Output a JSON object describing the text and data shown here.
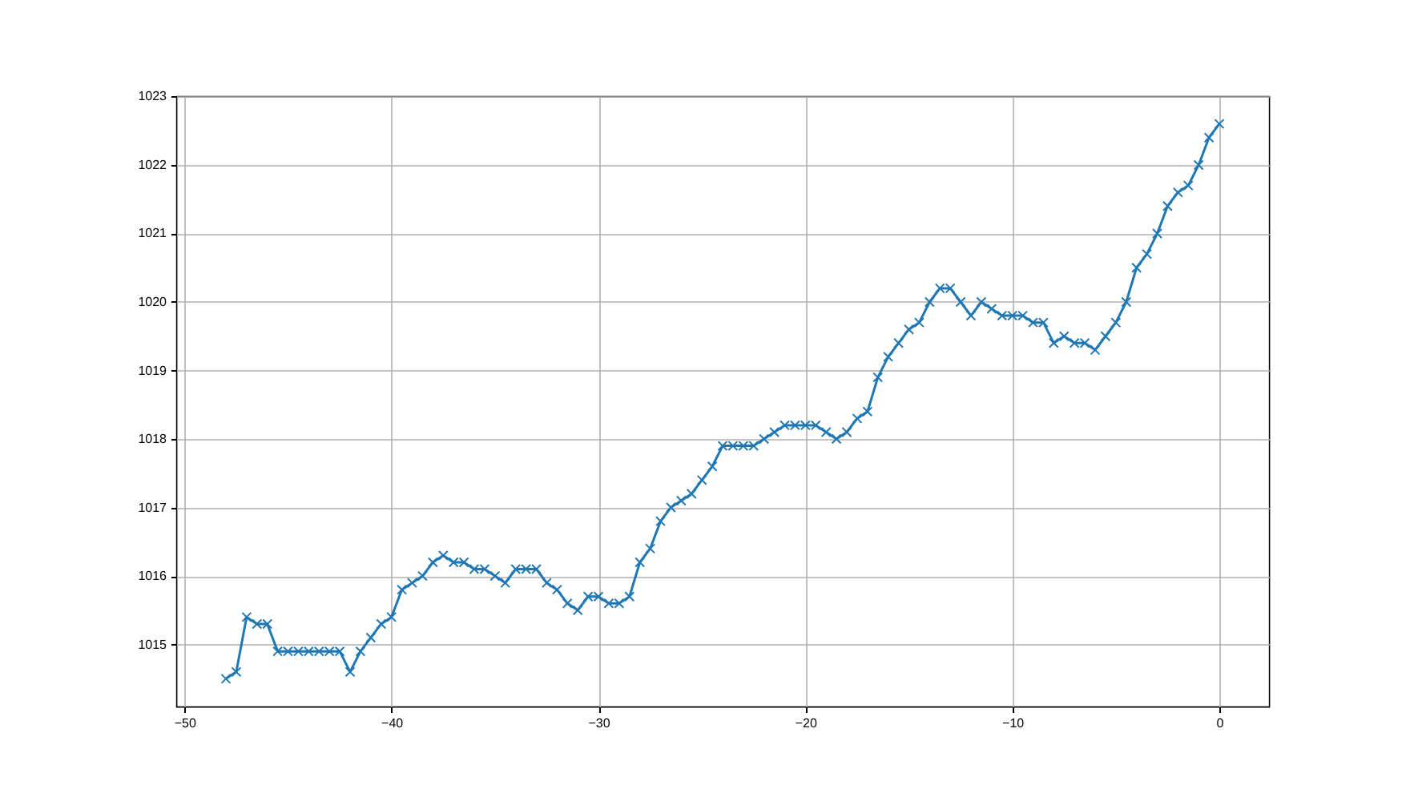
{
  "chart_data": {
    "type": "line",
    "marker": "cross",
    "grid": true,
    "x": [
      -48,
      -47.5,
      -47,
      -46.5,
      -46,
      -45.5,
      -45,
      -44.5,
      -44,
      -43.5,
      -43,
      -42.5,
      -42,
      -41.5,
      -41,
      -40.5,
      -40,
      -39.5,
      -39,
      -38.5,
      -38,
      -37.5,
      -37,
      -36.5,
      -36,
      -35.5,
      -35,
      -34.5,
      -34,
      -33.5,
      -33,
      -32.5,
      -32,
      -31.5,
      -31,
      -30.5,
      -30,
      -29.5,
      -29,
      -28.5,
      -28,
      -27.5,
      -27,
      -26.5,
      -26,
      -25.5,
      -25,
      -24.5,
      -24,
      -23.5,
      -23,
      -22.5,
      -22,
      -21.5,
      -21,
      -20.5,
      -20,
      -19.5,
      -19,
      -18.5,
      -18,
      -17.5,
      -17,
      -16.5,
      -16,
      -15.5,
      -15,
      -14.5,
      -14,
      -13.5,
      -13,
      -12.5,
      -12,
      -11.5,
      -11,
      -10.5,
      -10,
      -9.5,
      -9,
      -8.5,
      -8,
      -7.5,
      -7,
      -6.5,
      -6,
      -5.5,
      -5,
      -4.5,
      -4,
      -3.5,
      -3,
      -2.5,
      -2,
      -1.5,
      -1,
      -0.5,
      0
    ],
    "series": [
      {
        "color": "#1f77b4",
        "values": [
          1014.5,
          1014.6,
          1015.4,
          1015.3,
          1015.3,
          1014.9,
          1014.9,
          1014.9,
          1014.9,
          1014.9,
          1014.9,
          1014.9,
          1014.6,
          1014.9,
          1015.1,
          1015.3,
          1015.4,
          1015.8,
          1015.9,
          1016.0,
          1016.2,
          1016.3,
          1016.2,
          1016.2,
          1016.1,
          1016.1,
          1016.0,
          1015.9,
          1016.1,
          1016.1,
          1016.1,
          1015.9,
          1015.8,
          1015.6,
          1015.5,
          1015.7,
          1015.7,
          1015.6,
          1015.6,
          1015.7,
          1016.2,
          1016.4,
          1016.8,
          1017.0,
          1017.1,
          1017.2,
          1017.4,
          1017.6,
          1017.9,
          1017.9,
          1017.9,
          1017.9,
          1018.0,
          1018.1,
          1018.2,
          1018.2,
          1018.2,
          1018.2,
          1018.1,
          1018.0,
          1018.1,
          1018.3,
          1018.4,
          1018.9,
          1019.2,
          1019.4,
          1019.6,
          1019.7,
          1020.0,
          1020.2,
          1020.2,
          1020.0,
          1019.8,
          1020.0,
          1019.9,
          1019.8,
          1019.8,
          1019.8,
          1019.7,
          1019.7,
          1019.4,
          1019.5,
          1019.4,
          1019.4,
          1019.3,
          1019.5,
          1019.7,
          1020.0,
          1020.5,
          1020.7,
          1021.0,
          1021.4,
          1021.6,
          1021.7,
          1022.0,
          1022.4,
          1022.6
        ]
      }
    ],
    "xlim": [
      -50.4,
      2.4
    ],
    "ylim": [
      1014.095,
      1023.005
    ],
    "xticks": [
      -50,
      -40,
      -30,
      -20,
      -10,
      0
    ],
    "yticks": [
      1015,
      1016,
      1017,
      1018,
      1019,
      1020,
      1021,
      1022,
      1023
    ]
  }
}
